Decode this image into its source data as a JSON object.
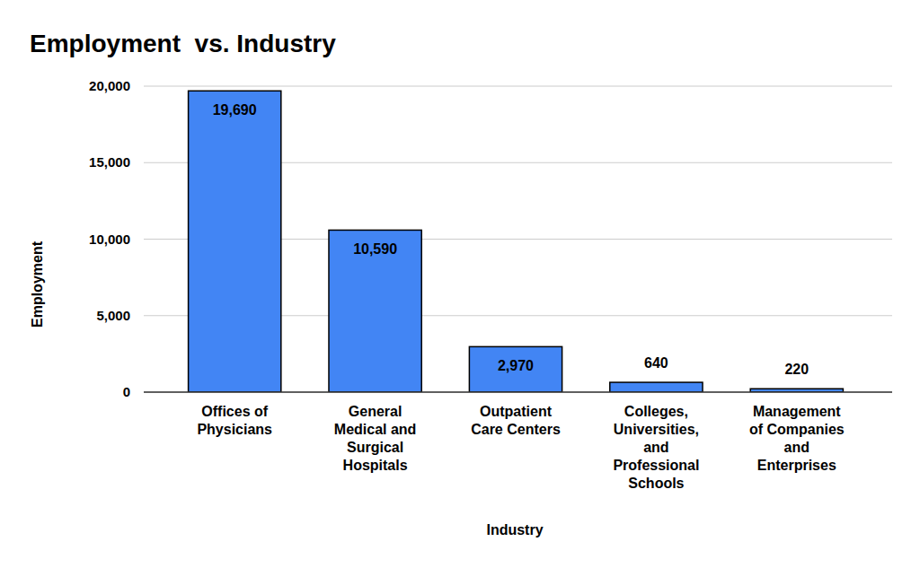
{
  "chart_data": {
    "type": "bar",
    "title": "Employment  vs. Industry",
    "x_label": "Industry",
    "y_label": "Employment",
    "categories": [
      "Offices of Physicians",
      "General Medical and Surgical Hospitals",
      "Outpatient Care Centers",
      "Colleges, Universities, and Professional Schools",
      "Management of Companies and Enterprises"
    ],
    "values": [
      19690,
      10590,
      2970,
      640,
      220
    ],
    "value_labels": [
      "19,690",
      "10,590",
      "2,970",
      "640",
      "220"
    ],
    "color": "#4285f4",
    "ylim": [
      0,
      20000
    ],
    "yticks": [
      0,
      {
        "value": 5000,
        "label": "5,000"
      },
      {
        "value": 10000,
        "label": "10,000"
      },
      {
        "value": 15000,
        "label": "15,000"
      },
      {
        "value": 20000,
        "label": "20,000"
      }
    ],
    "grid": true,
    "data_labels": true
  }
}
